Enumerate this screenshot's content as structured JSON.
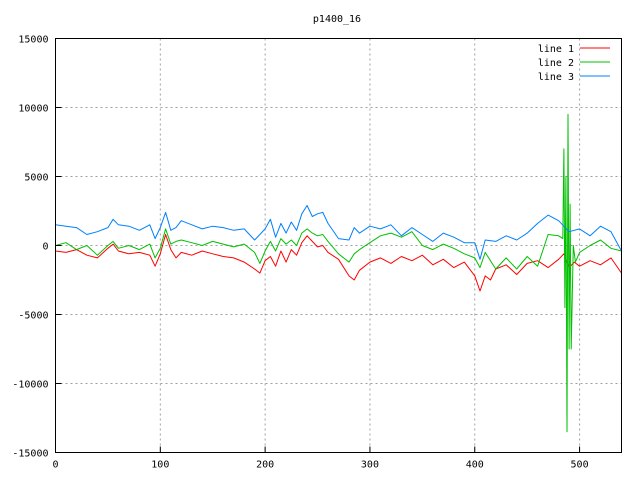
{
  "chart_data": {
    "type": "line",
    "title": "p1400_16",
    "xlabel": "",
    "ylabel": "",
    "xlim": [
      0,
      540
    ],
    "ylim": [
      -15000,
      15000
    ],
    "x_ticks": [
      0,
      100,
      200,
      300,
      400,
      500
    ],
    "y_ticks": [
      -15000,
      -10000,
      -5000,
      0,
      5000,
      10000,
      15000
    ],
    "grid": true,
    "legend_position": "top-right",
    "series": [
      {
        "name": "line 1",
        "color": "#ff0000",
        "x": [
          0,
          10,
          20,
          30,
          40,
          50,
          55,
          60,
          70,
          80,
          90,
          95,
          100,
          105,
          110,
          115,
          120,
          130,
          140,
          150,
          160,
          170,
          180,
          190,
          195,
          200,
          205,
          210,
          215,
          220,
          225,
          230,
          235,
          240,
          245,
          250,
          255,
          260,
          270,
          280,
          285,
          290,
          300,
          310,
          320,
          330,
          340,
          350,
          360,
          370,
          380,
          390,
          400,
          405,
          410,
          415,
          420,
          430,
          440,
          450,
          460,
          470,
          480,
          485,
          490,
          495,
          500,
          510,
          520,
          530,
          540
        ],
        "y": [
          -400,
          -500,
          -300,
          -700,
          -900,
          -200,
          100,
          -400,
          -600,
          -500,
          -700,
          -1500,
          -600,
          800,
          -300,
          -900,
          -500,
          -700,
          -400,
          -600,
          -800,
          -900,
          -1200,
          -1700,
          -2000,
          -1100,
          -800,
          -1500,
          -400,
          -1200,
          -300,
          -700,
          200,
          700,
          300,
          -100,
          0,
          -500,
          -1000,
          -2200,
          -2500,
          -1800,
          -1200,
          -900,
          -1300,
          -800,
          -1100,
          -700,
          -1400,
          -1000,
          -1600,
          -1200,
          -2200,
          -3300,
          -2200,
          -2500,
          -1700,
          -1400,
          -2100,
          -1300,
          -1100,
          -1600,
          -1000,
          -600,
          -1600,
          -1200,
          -1500,
          -1100,
          -1400,
          -900,
          -2000
        ]
      },
      {
        "name": "line 2",
        "color": "#00c000",
        "x": [
          0,
          10,
          20,
          30,
          40,
          50,
          55,
          60,
          70,
          80,
          90,
          95,
          100,
          105,
          110,
          115,
          120,
          130,
          140,
          150,
          160,
          170,
          180,
          190,
          195,
          200,
          205,
          210,
          215,
          220,
          225,
          230,
          235,
          240,
          245,
          250,
          255,
          260,
          270,
          280,
          285,
          290,
          300,
          310,
          320,
          330,
          340,
          350,
          360,
          370,
          380,
          390,
          400,
          405,
          410,
          420,
          430,
          440,
          450,
          460,
          470,
          480,
          484,
          485,
          486,
          487,
          488,
          489,
          490,
          491,
          492,
          494,
          496,
          500,
          510,
          520,
          530,
          540
        ],
        "y": [
          0,
          200,
          -300,
          0,
          -700,
          0,
          300,
          -200,
          0,
          -300,
          100,
          -900,
          -200,
          1200,
          100,
          300,
          400,
          200,
          0,
          300,
          100,
          -100,
          100,
          -500,
          -1300,
          -400,
          300,
          -400,
          500,
          100,
          400,
          0,
          900,
          1200,
          900,
          700,
          800,
          300,
          -600,
          -1200,
          -600,
          -300,
          200,
          700,
          900,
          600,
          1000,
          0,
          -300,
          100,
          -200,
          -600,
          -900,
          -1600,
          -500,
          -1700,
          -900,
          -1700,
          -800,
          -1500,
          800,
          700,
          500,
          7000,
          -4500,
          5000,
          -13500,
          9500,
          -7500,
          3000,
          -7500,
          0,
          -1200,
          -500,
          0,
          400,
          -200,
          -400
        ]
      },
      {
        "name": "line 3",
        "color": "#0080ff",
        "x": [
          0,
          10,
          20,
          30,
          40,
          50,
          55,
          60,
          70,
          80,
          90,
          95,
          100,
          105,
          110,
          115,
          120,
          130,
          140,
          150,
          160,
          170,
          180,
          190,
          195,
          200,
          205,
          210,
          215,
          220,
          225,
          230,
          235,
          240,
          245,
          250,
          255,
          260,
          270,
          280,
          285,
          290,
          300,
          310,
          320,
          330,
          340,
          350,
          360,
          370,
          380,
          390,
          400,
          405,
          410,
          420,
          430,
          440,
          450,
          460,
          470,
          480,
          490,
          500,
          510,
          520,
          530,
          540
        ],
        "y": [
          1500,
          1400,
          1300,
          800,
          1000,
          1300,
          1900,
          1500,
          1400,
          1100,
          1500,
          500,
          1300,
          2400,
          1100,
          1300,
          1800,
          1500,
          1200,
          1400,
          1300,
          1100,
          1200,
          400,
          800,
          1200,
          1900,
          600,
          1600,
          900,
          1700,
          1100,
          2300,
          2900,
          2100,
          2300,
          2400,
          1600,
          500,
          400,
          1300,
          900,
          1400,
          1200,
          1500,
          700,
          1300,
          800,
          300,
          900,
          600,
          200,
          200,
          -1000,
          400,
          300,
          700,
          400,
          900,
          1600,
          2200,
          1800,
          1000,
          1200,
          700,
          1400,
          1000,
          -400
        ]
      }
    ]
  }
}
